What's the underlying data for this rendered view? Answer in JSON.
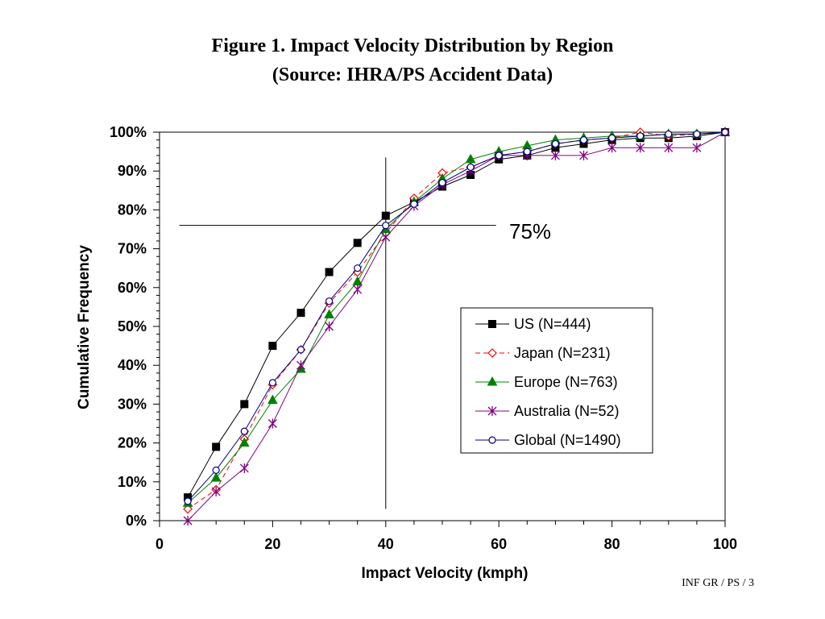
{
  "page": {
    "title_line1": "Figure 1.  Impact Velocity Distribution by Region",
    "title_line2": "(Source: IHRA/PS Accident Data)",
    "footer": "INF GR / PS / 3"
  },
  "chart_data": {
    "type": "line",
    "title": "Figure 1.  Impact Velocity Distribution by Region",
    "subtitle": "(Source: IHRA/PS Accident Data)",
    "xlabel": "Impact Velocity (kmph)",
    "ylabel": "Cumulative Frequency",
    "xlim": [
      0,
      100
    ],
    "ylim": [
      0,
      100
    ],
    "x_ticks": [
      0,
      20,
      40,
      60,
      80,
      100
    ],
    "y_ticks": [
      0,
      10,
      20,
      30,
      40,
      50,
      60,
      70,
      80,
      90,
      100
    ],
    "y_tick_labels": [
      "0%",
      "10%",
      "20%",
      "30%",
      "40%",
      "50%",
      "60%",
      "70%",
      "80%",
      "90%",
      "100%"
    ],
    "grid": false,
    "legend_position": "bottom-right",
    "x": [
      5,
      10,
      15,
      20,
      25,
      30,
      35,
      40,
      45,
      50,
      55,
      60,
      65,
      70,
      75,
      80,
      85,
      90,
      95,
      100
    ],
    "series": [
      {
        "name": "US (N=444)",
        "color": "#000000",
        "marker": "square",
        "dash": "solid",
        "values": [
          6,
          19,
          30,
          45,
          53.5,
          64,
          71.5,
          78.5,
          82,
          86,
          89,
          93,
          94,
          96,
          97,
          98,
          98.5,
          98.5,
          99,
          100
        ]
      },
      {
        "name": "Japan (N=231)",
        "color": "#ff0000",
        "marker": "diamond",
        "dash": "dashed",
        "values": [
          3,
          8,
          21,
          35,
          44,
          56,
          64,
          74,
          83,
          89.5,
          91,
          94,
          95,
          97,
          98,
          98.5,
          100,
          99,
          99.5,
          100
        ]
      },
      {
        "name": "Europe (N=763)",
        "color": "#008000",
        "marker": "triangle",
        "dash": "solid",
        "values": [
          4.5,
          11,
          20,
          31,
          39,
          53,
          61.5,
          75,
          82,
          88,
          93,
          95,
          96.5,
          98,
          98.5,
          99,
          99,
          99.5,
          99.5,
          100
        ]
      },
      {
        "name": "Australia (N=52)",
        "color": "#800080",
        "marker": "asterisk",
        "dash": "solid",
        "values": [
          0,
          7.5,
          13.5,
          25,
          40,
          50,
          59.5,
          73,
          81,
          86.5,
          90,
          94,
          94,
          94,
          94,
          96,
          96,
          96,
          96,
          100
        ]
      },
      {
        "name": "Global (N=1490)",
        "color": "#000080",
        "marker": "circle",
        "dash": "solid",
        "values": [
          5,
          13,
          23,
          35.5,
          44,
          56.5,
          65,
          76,
          81.5,
          87,
          91,
          94,
          95,
          97,
          98,
          98.5,
          99,
          99.5,
          99.5,
          100
        ]
      }
    ],
    "annotations": [
      {
        "type": "hline",
        "y": 76,
        "x_from": 3.5,
        "x_to": 59.5
      },
      {
        "type": "vline",
        "x": 40,
        "y_from": 3,
        "y_to": 93.5
      },
      {
        "type": "text",
        "text": "75%"
      }
    ]
  }
}
